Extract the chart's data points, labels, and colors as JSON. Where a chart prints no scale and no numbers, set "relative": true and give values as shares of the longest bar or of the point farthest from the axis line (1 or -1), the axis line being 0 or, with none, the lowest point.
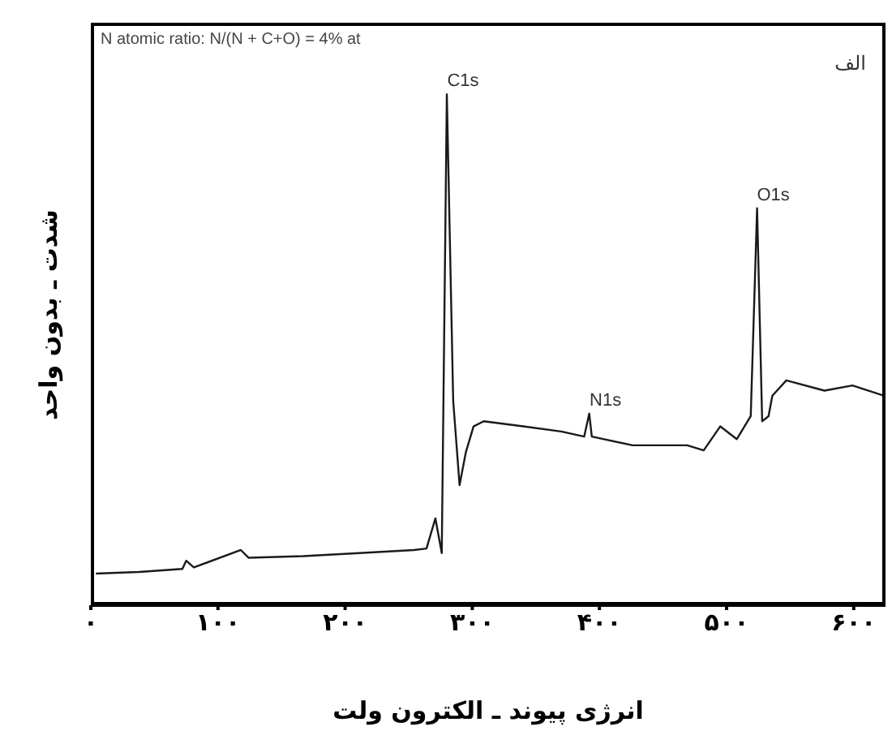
{
  "chart_data": {
    "type": "line",
    "relative": true,
    "xlabel": "انرژی پیوند ـ الکترون ولت",
    "ylabel": "شدت ـ بدون واحد",
    "xlim": [
      0,
      625
    ],
    "xticks": [
      {
        "value": 0,
        "label": "۰"
      },
      {
        "value": 100,
        "label": "۱۰۰"
      },
      {
        "value": 200,
        "label": "۲۰۰"
      },
      {
        "value": 300,
        "label": "۳۰۰"
      },
      {
        "value": 400,
        "label": "۴۰۰"
      },
      {
        "value": 500,
        "label": "۵۰۰"
      },
      {
        "value": 600,
        "label": "۶۰۰"
      }
    ],
    "marker": "none",
    "line_style": "solid",
    "annotations": [
      "N atomic ratio: N/(N + C+O) = 4% at",
      "الف",
      {
        "text": "C1s",
        "x": 280,
        "y": 1
      },
      {
        "text": "N1s",
        "x": 392,
        "y": 0.375
      },
      {
        "text": "O1s",
        "x": 524,
        "y": 0.777
      }
    ],
    "series": [
      {
        "color": "#1a1a1a",
        "x": [
          4,
          38,
          72,
          75,
          81,
          118,
          124,
          167,
          211,
          254,
          264,
          271,
          276,
          280,
          285,
          290,
          295,
          301,
          309,
          340,
          370,
          388,
          392,
          394,
          426,
          469,
          482,
          495,
          508,
          519,
          524,
          528,
          533,
          536,
          547,
          577,
          599,
          624
        ],
        "values": [
          0.062,
          0.065,
          0.071,
          0.087,
          0.074,
          0.108,
          0.093,
          0.096,
          0.102,
          0.108,
          0.111,
          0.17,
          0.102,
          1,
          0.4,
          0.235,
          0.3,
          0.35,
          0.36,
          0.35,
          0.34,
          0.33,
          0.375,
          0.33,
          0.313,
          0.313,
          0.303,
          0.35,
          0.325,
          0.37,
          0.777,
          0.36,
          0.37,
          0.41,
          0.44,
          0.42,
          0.43,
          0.41
        ]
      }
    ]
  }
}
